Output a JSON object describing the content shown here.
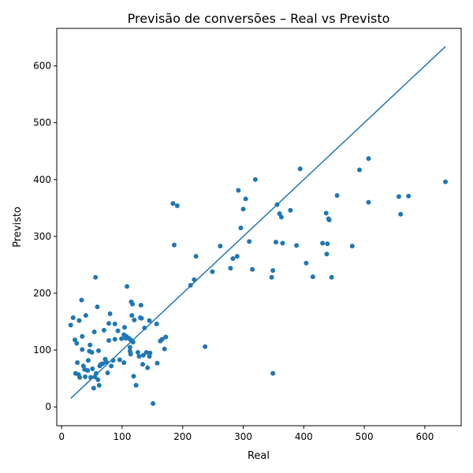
{
  "chart_data": {
    "type": "scatter",
    "title": "Previsão de conversões – Real vs Previsto",
    "xlabel": "Real",
    "ylabel": "Previsto",
    "xlim": [
      -8,
      660
    ],
    "ylim": [
      -33,
      666
    ],
    "xticks": [
      0,
      100,
      200,
      300,
      400,
      500,
      600
    ],
    "yticks": [
      0,
      100,
      200,
      300,
      400,
      500,
      600
    ],
    "grid": false,
    "color": "#1f77b4",
    "series": [
      {
        "type": "scatter",
        "points": [
          [
            15,
            144
          ],
          [
            19,
            157
          ],
          [
            22,
            118
          ],
          [
            23,
            59
          ],
          [
            25,
            112
          ],
          [
            26,
            78
          ],
          [
            28,
            57
          ],
          [
            29,
            152
          ],
          [
            30,
            52
          ],
          [
            33,
            188
          ],
          [
            34,
            101
          ],
          [
            34,
            124
          ],
          [
            36,
            72
          ],
          [
            38,
            66
          ],
          [
            39,
            53
          ],
          [
            40,
            161
          ],
          [
            43,
            64
          ],
          [
            44,
            82
          ],
          [
            46,
            98
          ],
          [
            47,
            109
          ],
          [
            48,
            52
          ],
          [
            50,
            96
          ],
          [
            51,
            67
          ],
          [
            53,
            33
          ],
          [
            54,
            132
          ],
          [
            55,
            53
          ],
          [
            56,
            228
          ],
          [
            57,
            59
          ],
          [
            59,
            176
          ],
          [
            60,
            48
          ],
          [
            61,
            99
          ],
          [
            62,
            38
          ],
          [
            63,
            72
          ],
          [
            65,
            75
          ],
          [
            68,
            76
          ],
          [
            70,
            135
          ],
          [
            72,
            84
          ],
          [
            74,
            79
          ],
          [
            76,
            60
          ],
          [
            78,
            117
          ],
          [
            78,
            147
          ],
          [
            80,
            164
          ],
          [
            82,
            72
          ],
          [
            85,
            82
          ],
          [
            88,
            146
          ],
          [
            88,
            119
          ],
          [
            93,
            134
          ],
          [
            96,
            83
          ],
          [
            99,
            120
          ],
          [
            103,
            127
          ],
          [
            103,
            78
          ],
          [
            104,
            140
          ],
          [
            106,
            121
          ],
          [
            107,
            124
          ],
          [
            108,
            212
          ],
          [
            111,
            121
          ],
          [
            113,
            98
          ],
          [
            113,
            105
          ],
          [
            114,
            93
          ],
          [
            114,
            118
          ],
          [
            115,
            185
          ],
          [
            116,
            161
          ],
          [
            117,
            181
          ],
          [
            118,
            114
          ],
          [
            119,
            54
          ],
          [
            120,
            153
          ],
          [
            123,
            38
          ],
          [
            126,
            96
          ],
          [
            128,
            89
          ],
          [
            130,
            157
          ],
          [
            131,
            179
          ],
          [
            132,
            156
          ],
          [
            134,
            75
          ],
          [
            135,
            91
          ],
          [
            137,
            139
          ],
          [
            140,
            96
          ],
          [
            142,
            69
          ],
          [
            145,
            152
          ],
          [
            145,
            89
          ],
          [
            146,
            95
          ],
          [
            151,
            6
          ],
          [
            157,
            146
          ],
          [
            158,
            77
          ],
          [
            163,
            116
          ],
          [
            166,
            119
          ],
          [
            170,
            102
          ],
          [
            172,
            123
          ],
          [
            184,
            358
          ],
          [
            186,
            285
          ],
          [
            191,
            354
          ],
          [
            213,
            214
          ],
          [
            219,
            224
          ],
          [
            222,
            265
          ],
          [
            237,
            106
          ],
          [
            249,
            238
          ],
          [
            262,
            283
          ],
          [
            279,
            244
          ],
          [
            283,
            261
          ],
          [
            290,
            265
          ],
          [
            292,
            381
          ],
          [
            296,
            315
          ],
          [
            300,
            348
          ],
          [
            304,
            366
          ],
          [
            310,
            291
          ],
          [
            315,
            242
          ],
          [
            320,
            400
          ],
          [
            347,
            228
          ],
          [
            349,
            240
          ],
          [
            349,
            59
          ],
          [
            354,
            290
          ],
          [
            356,
            356
          ],
          [
            360,
            340
          ],
          [
            363,
            334
          ],
          [
            365,
            288
          ],
          [
            378,
            346
          ],
          [
            388,
            284
          ],
          [
            394,
            419
          ],
          [
            404,
            253
          ],
          [
            415,
            229
          ],
          [
            431,
            288
          ],
          [
            437,
            341
          ],
          [
            438,
            269
          ],
          [
            439,
            287
          ],
          [
            441,
            331
          ],
          [
            442,
            329
          ],
          [
            446,
            228
          ],
          [
            455,
            372
          ],
          [
            480,
            283
          ],
          [
            492,
            417
          ],
          [
            507,
            437
          ],
          [
            507,
            360
          ],
          [
            557,
            370
          ],
          [
            560,
            339
          ],
          [
            573,
            371
          ],
          [
            634,
            396
          ]
        ]
      },
      {
        "type": "line",
        "points": [
          [
            15,
            15
          ],
          [
            634,
            634
          ]
        ]
      }
    ]
  }
}
